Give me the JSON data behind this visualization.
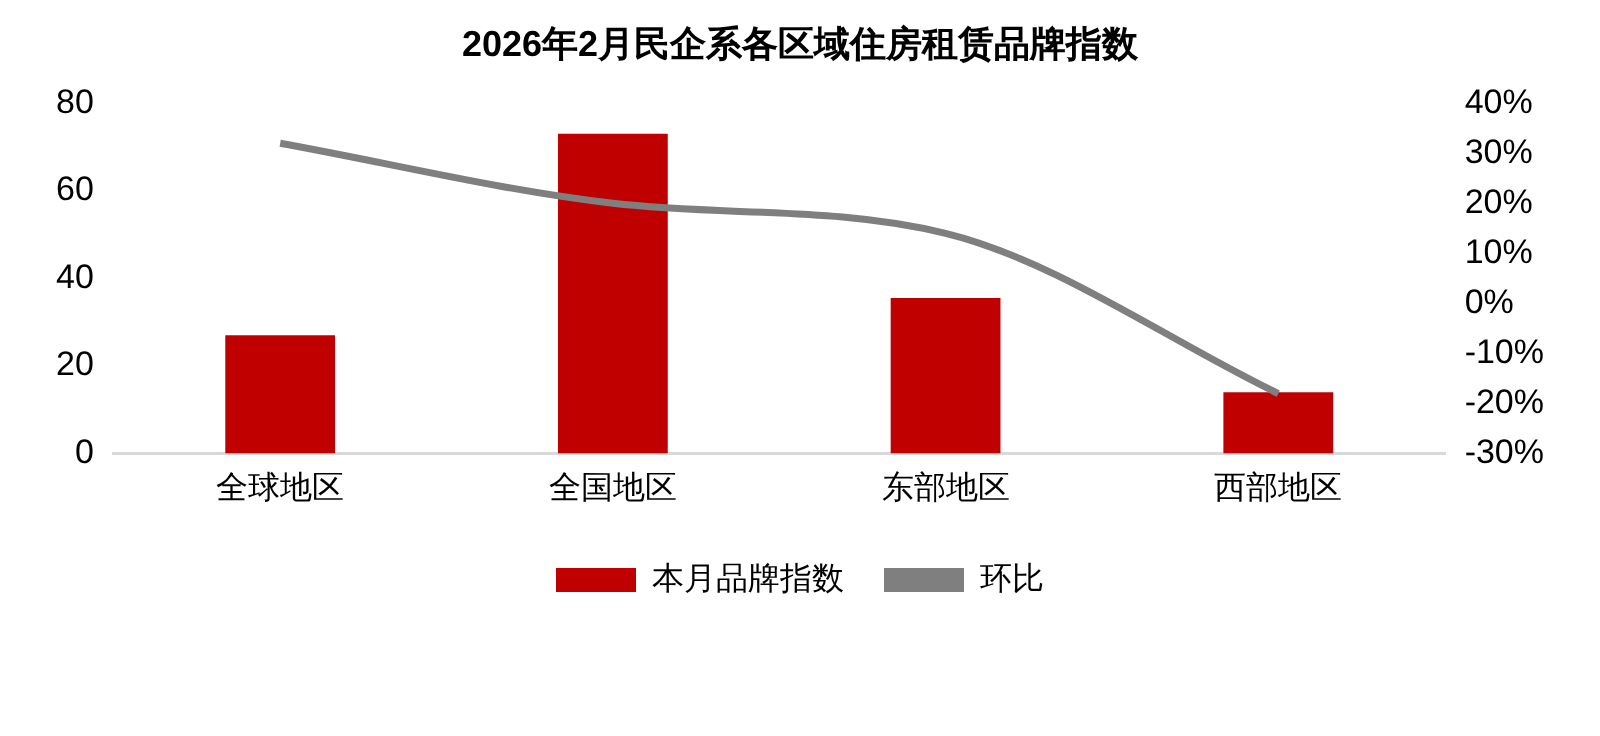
{
  "chart_data": {
    "type": "bar",
    "title": "2026年2月民企系各区域住房租赁品牌指数",
    "categories": [
      "全球地区",
      "全国地区",
      "东部地区",
      "西部地区"
    ],
    "series": [
      {
        "name": "本月品牌指数",
        "color": "#c00000",
        "values": [
          27,
          73,
          35.5,
          14
        ]
      },
      {
        "name": "环比",
        "type": "line",
        "axis": "y2",
        "color": "#7f7f7f",
        "values": [
          32,
          20,
          14,
          -18
        ]
      }
    ],
    "ylim": [
      0,
      80
    ],
    "yticks": [
      0,
      20,
      40,
      60,
      80
    ],
    "y2lim": [
      -30,
      40
    ],
    "y2ticks": [
      {
        "value": -30,
        "label": "-30%"
      },
      {
        "value": -20,
        "label": "-20%"
      },
      {
        "value": -10,
        "label": "-10%"
      },
      {
        "value": 0,
        "label": "0%"
      },
      {
        "value": 10,
        "label": "10%"
      },
      {
        "value": 20,
        "label": "20%"
      },
      {
        "value": 30,
        "label": "30%"
      },
      {
        "value": 40,
        "label": "40%"
      }
    ],
    "grid": false,
    "legend": "bottom",
    "marker": "none"
  }
}
